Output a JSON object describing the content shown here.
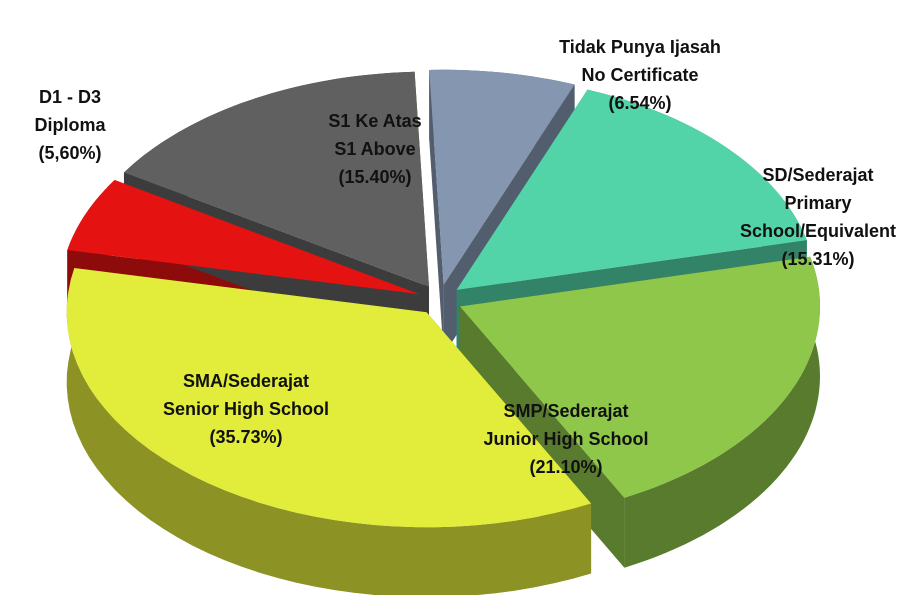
{
  "chart_data": {
    "type": "pie",
    "categories": [
      [
        "Tidak Punya Ijasah",
        "No Certificate"
      ],
      [
        "SD/Sederajat",
        "Primary",
        "School/Equivalent"
      ],
      [
        "SMP/Sederajat",
        "Junior High School"
      ],
      [
        "SMA/Sederajat",
        "Senior High School"
      ],
      [
        "D1 - D3",
        "Diploma"
      ],
      [
        "S1 Ke Atas",
        "S1 Above"
      ]
    ],
    "values": [
      6.54,
      15.31,
      21.1,
      35.73,
      5.6,
      15.4
    ],
    "value_labels": [
      "(6.54%)",
      "(15.31%)",
      "(21.10%)",
      "(35.73%)",
      "(5,60%)",
      "(15.40%)"
    ],
    "colors": [
      "#8496b0",
      "#52d4a8",
      "#8ec74a",
      "#e2ec3a",
      "#e51212",
      "#606060"
    ]
  }
}
